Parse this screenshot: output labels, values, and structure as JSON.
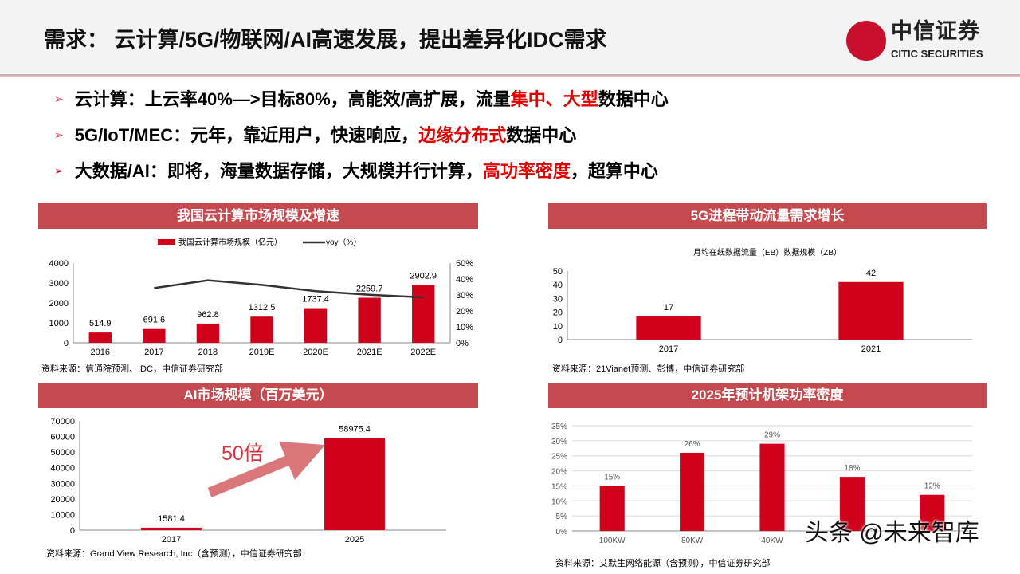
{
  "header": {
    "title": "需求： 云计算/5G/物联网/AI高速发展，提出差异化IDC需求",
    "logo_cn": "中信证券",
    "logo_en": "CITIC SECURITIES"
  },
  "bullets": [
    {
      "parts": [
        {
          "t": "云计算：上云率40%—>目标80%，高能效/高扩展，流量"
        },
        {
          "t": "集中、大型",
          "red": true
        },
        {
          "t": "数据中心"
        }
      ]
    },
    {
      "parts": [
        {
          "t": "5G/IoT/MEC：元年，靠近用户，快速响应，"
        },
        {
          "t": "边缘分布式",
          "red": true
        },
        {
          "t": "数据中心"
        }
      ]
    },
    {
      "parts": [
        {
          "t": "大数据/AI：即将，海量数据存储，大规模并行计算，"
        },
        {
          "t": "高功率密度",
          "red": true
        },
        {
          "t": "，超算中心"
        }
      ]
    }
  ],
  "colors": {
    "accent": "#c8102e",
    "bar": "#d0021b",
    "panel_header": "#c44a4f",
    "line": "#333333"
  },
  "annotation": "50倍",
  "watermark": "头条 @未来智库",
  "chart_data": [
    {
      "type": "bar+line",
      "title": "我国云计算市场规模及增速",
      "categories": [
        "2016",
        "2017",
        "2018",
        "2019E",
        "2020E",
        "2021E",
        "2022E"
      ],
      "series": [
        {
          "name": "我国云计算市场规模（亿元）",
          "type": "bar",
          "values": [
            514.9,
            691.6,
            962.8,
            1312.5,
            1737.4,
            2259.7,
            2902.9
          ],
          "labels": [
            "514.9",
            "691.6",
            "962.8",
            "1312.5",
            "1737.4",
            "2259.7",
            "2902.9"
          ]
        },
        {
          "name": "yoy（%）",
          "type": "line",
          "axis": "right",
          "values": [
            null,
            34.3,
            39.2,
            36.3,
            32.4,
            30.1,
            28.5
          ]
        }
      ],
      "ylim": [
        0,
        4000
      ],
      "yticks": [
        "0",
        "1000",
        "2000",
        "3000",
        "4000"
      ],
      "y2lim": [
        0,
        50
      ],
      "y2ticks": [
        "0%",
        "10%",
        "20%",
        "30%",
        "40%",
        "50%"
      ],
      "legend": "top",
      "grid": false,
      "source": "资料来源：信通院预测、IDC，中信证券研究部"
    },
    {
      "type": "bar",
      "title": "5G进程带动流量需求增长",
      "subtitle": "月均在线数据流量（EB）数据规模（ZB）",
      "categories": [
        "2017",
        "2021"
      ],
      "values": [
        17,
        42
      ],
      "labels": [
        "17",
        "42"
      ],
      "ylim": [
        0,
        50
      ],
      "yticks": [
        "0",
        "10",
        "20",
        "30",
        "40",
        "50"
      ],
      "grid": false,
      "source": "资料来源：21Vianet预测、彭博，中信证券研究部"
    },
    {
      "type": "bar",
      "title": "AI市场规模（百万美元）",
      "categories": [
        "2017",
        "2025"
      ],
      "values": [
        1581.4,
        58975.4
      ],
      "labels": [
        "1581.4",
        "58975.4"
      ],
      "ylim": [
        0,
        70000
      ],
      "yticks": [
        "0",
        "10000",
        "20000",
        "30000",
        "40000",
        "50000",
        "60000",
        "70000"
      ],
      "grid": false,
      "source": "资料来源：Grand View Research, Inc（含预测），中信证券研究部"
    },
    {
      "type": "bar",
      "title": "2025年预计机架功率密度",
      "categories": [
        "100KW",
        "80KW",
        "40KW",
        "",
        ""
      ],
      "values": [
        15,
        26,
        29,
        18,
        12
      ],
      "labels": [
        "15%",
        "26%",
        "29%",
        "18%",
        "12%"
      ],
      "ylim": [
        0,
        35
      ],
      "yticks": [
        "0%",
        "5%",
        "10%",
        "15%",
        "20%",
        "25%",
        "30%",
        "35%"
      ],
      "grid": true,
      "source": "资料来源：艾默生网络能源（含预测），中信证券研究部"
    }
  ]
}
